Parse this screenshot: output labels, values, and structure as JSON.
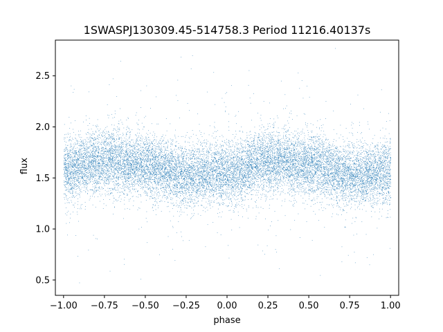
{
  "chart_data": {
    "type": "scatter",
    "title": "1SWASPJ130309.45-514758.3 Period 11216.40137s",
    "xlabel": "phase",
    "ylabel": "flux",
    "xlim": [
      -1.05,
      1.05
    ],
    "ylim": [
      0.35,
      2.85
    ],
    "xticks": [
      -1.0,
      -0.75,
      -0.5,
      -0.25,
      0.0,
      0.25,
      0.5,
      0.75,
      1.0
    ],
    "xtick_labels": [
      "−1.00",
      "−0.75",
      "−0.50",
      "−0.25",
      "0.00",
      "0.25",
      "0.50",
      "0.75",
      "1.00"
    ],
    "yticks": [
      0.5,
      1.0,
      1.5,
      2.0,
      2.5
    ],
    "ytick_labels": [
      "0.5",
      "1.0",
      "1.5",
      "2.0",
      "2.5"
    ],
    "grid": false,
    "legend": "none",
    "marker_color": "#1f77b4",
    "series": [
      {
        "description_of_trend": "dense band of points, approximately sinusoidal with two cycles over phase -1 to 1",
        "trend_x": [
          -1.0,
          -0.75,
          -0.5,
          -0.25,
          0.0,
          0.25,
          0.5,
          0.75,
          1.0
        ],
        "trend_y": [
          1.57,
          1.68,
          1.62,
          1.52,
          1.55,
          1.67,
          1.63,
          1.53,
          1.55
        ]
      }
    ]
  }
}
